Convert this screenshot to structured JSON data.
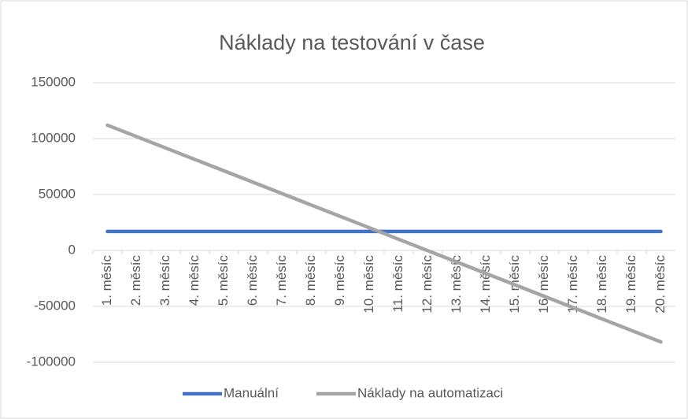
{
  "chart_data": {
    "type": "line",
    "title": "Náklady na testování v čase",
    "categories": [
      "1. měsíc",
      "2. měsíc",
      "3. měsíc",
      "4. měsíc",
      "5. měsíc",
      "6. měsíc",
      "7. měsíc",
      "8. měsíc",
      "9. měsíc",
      "10. měsíc",
      "11. měsíc",
      "12. měsíc",
      "13. měsíc",
      "14. měsíc",
      "15. měsíc",
      "16. měsíc",
      "17. měsíc",
      "18. měsíc",
      "19. měsíc",
      "20. měsíc"
    ],
    "series": [
      {
        "name": "Manuální",
        "color": "#4472c4",
        "values": [
          17000,
          17000,
          17000,
          17000,
          17000,
          17000,
          17000,
          17000,
          17000,
          17000,
          17000,
          17000,
          17000,
          17000,
          17000,
          17000,
          17000,
          17000,
          17000,
          17000
        ]
      },
      {
        "name": "Náklady na automatizaci",
        "color": "#a5a5a5",
        "values": [
          112000,
          101800,
          91600,
          81400,
          71200,
          61000,
          50800,
          40600,
          30400,
          20200,
          10000,
          -200,
          -10400,
          -20600,
          -30800,
          -41000,
          -51200,
          -61400,
          -71600,
          -81800
        ]
      }
    ],
    "ylim": [
      -100000,
      150000
    ],
    "yticks": [
      -100000,
      -50000,
      0,
      50000,
      100000,
      150000
    ],
    "grid": true,
    "legend": "bottom"
  }
}
